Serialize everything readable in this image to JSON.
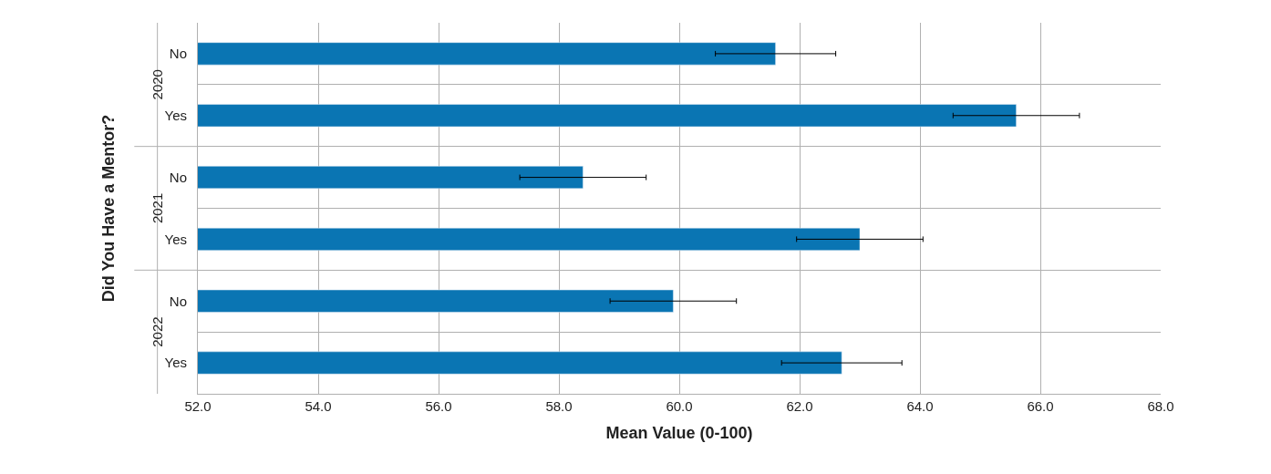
{
  "chart_data": {
    "type": "bar",
    "orientation": "horizontal",
    "xlabel": "Mean Value (0-100)",
    "ylabel": "Did You Have a Mentor?",
    "categories": [
      "No",
      "Yes",
      "No",
      "Yes",
      "No",
      "Yes"
    ],
    "values": [
      61.6,
      65.6,
      58.4,
      63.0,
      59.9,
      62.7
    ],
    "errors": [
      1.0,
      1.05,
      1.05,
      1.05,
      1.05,
      1.0
    ],
    "color": "#0a75b3",
    "annotations": [
      "2020",
      "2021",
      "2022"
    ],
    "xlim": [
      52,
      68
    ],
    "xticks": [
      {
        "value": 52,
        "label": "52.0"
      },
      {
        "value": 54,
        "label": "54.0"
      },
      {
        "value": 56,
        "label": "56.0"
      },
      {
        "value": 58,
        "label": "58.0"
      },
      {
        "value": 60,
        "label": "60.0"
      },
      {
        "value": 62,
        "label": "62.0"
      },
      {
        "value": 64,
        "label": "64.0"
      },
      {
        "value": 66,
        "label": "66.0"
      },
      {
        "value": 68,
        "label": "68.0"
      }
    ],
    "grid": true,
    "legend": false
  }
}
